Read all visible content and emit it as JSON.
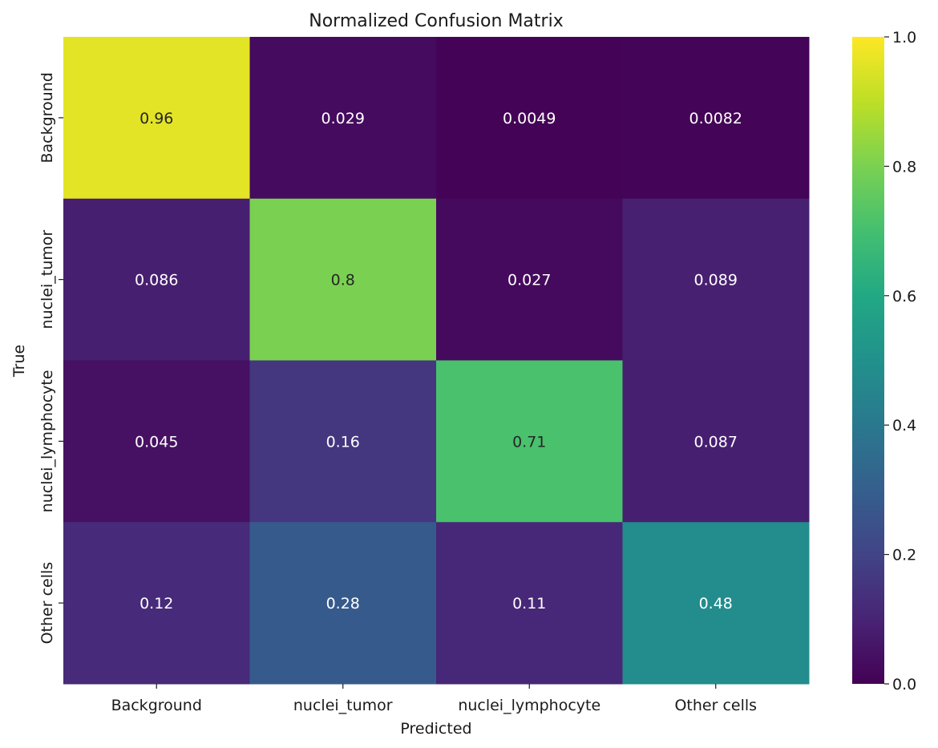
{
  "chart_data": {
    "type": "heatmap",
    "title": "Normalized Confusion Matrix",
    "xlabel": "Predicted",
    "ylabel": "True",
    "x_categories": [
      "Background",
      "nuclei_tumor",
      "nuclei_lymphocyte",
      "Other cells"
    ],
    "y_categories": [
      "Background",
      "nuclei_tumor",
      "nuclei_lymphocyte",
      "Other cells"
    ],
    "values": [
      [
        0.96,
        0.029,
        0.0049,
        0.0082
      ],
      [
        0.086,
        0.8,
        0.027,
        0.089
      ],
      [
        0.045,
        0.16,
        0.71,
        0.087
      ],
      [
        0.12,
        0.28,
        0.11,
        0.48
      ]
    ],
    "value_labels": [
      [
        "0.96",
        "0.029",
        "0.0049",
        "0.0082"
      ],
      [
        "0.086",
        "0.8",
        "0.027",
        "0.089"
      ],
      [
        "0.045",
        "0.16",
        "0.71",
        "0.087"
      ],
      [
        "0.12",
        "0.28",
        "0.11",
        "0.48"
      ]
    ],
    "colormap": "viridis",
    "vmin": 0.0,
    "vmax": 1.0,
    "colorbar_ticks": [
      0.0,
      0.2,
      0.4,
      0.6,
      0.8,
      1.0
    ],
    "colorbar_tick_labels": [
      "0.0",
      "0.2",
      "0.4",
      "0.6",
      "0.8",
      "1.0"
    ],
    "grid": false,
    "colorbar_placement": "right"
  }
}
